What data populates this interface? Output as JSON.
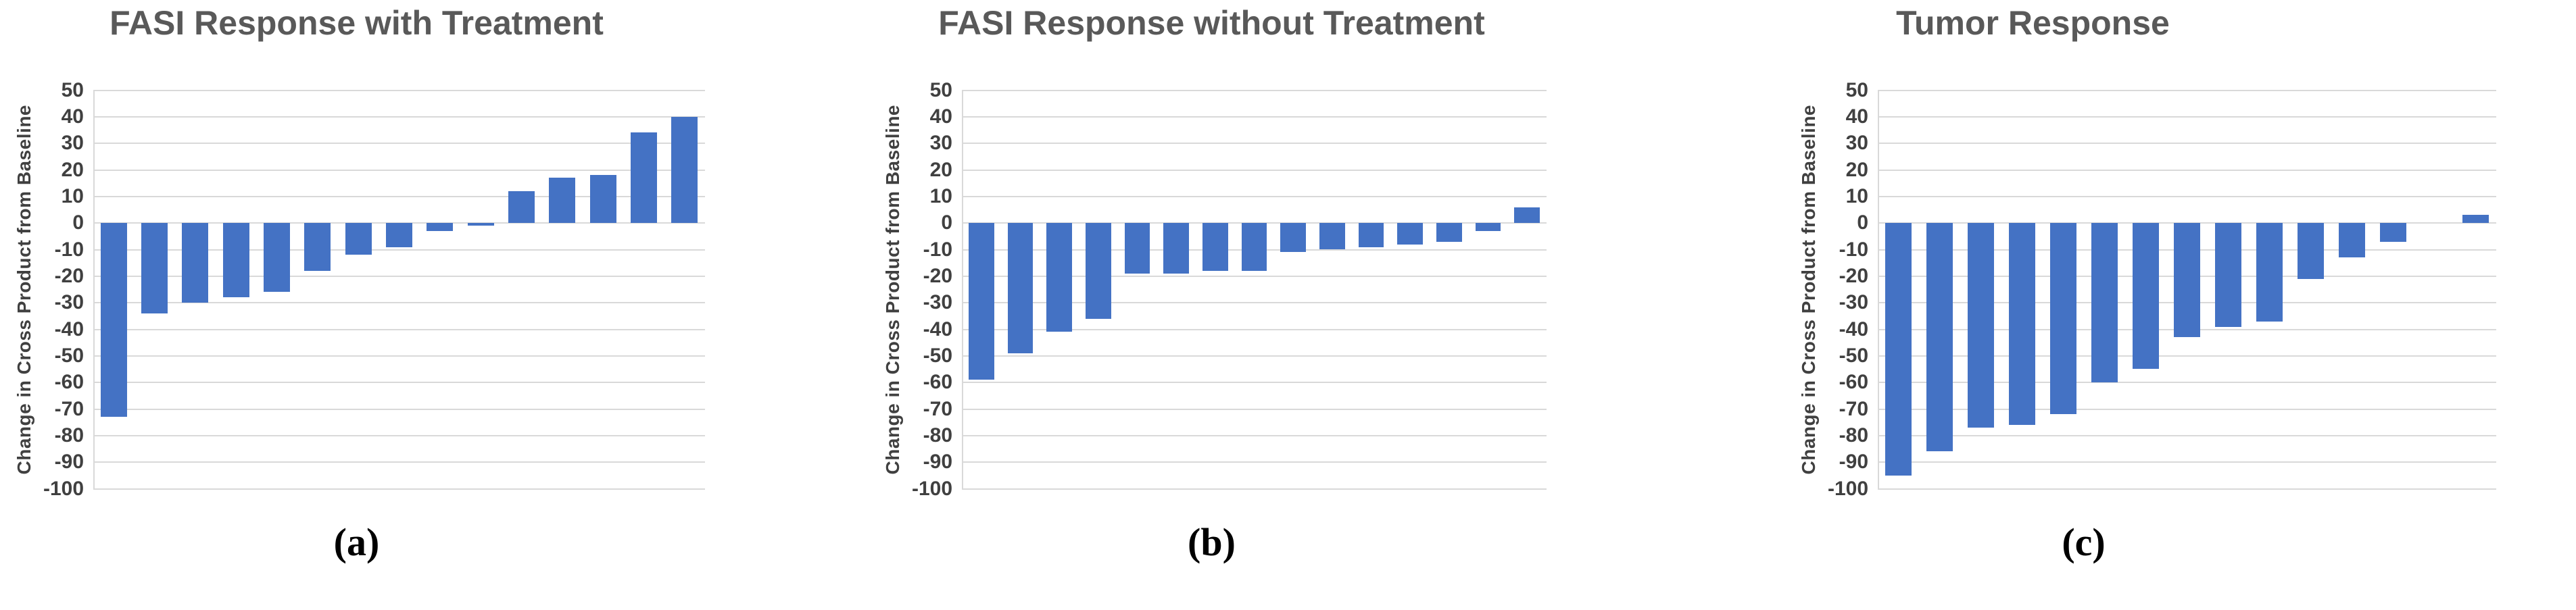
{
  "chart_data": [
    {
      "type": "bar",
      "subtype": "waterfall",
      "panel_label": "(a)",
      "title": "FASI Response with Treatment",
      "ylabel": "Change in Cross Product from Baseline",
      "xlabel": "",
      "x_tick_labels": [],
      "values": [
        -73,
        -34,
        -30,
        -28,
        -26,
        -18,
        -12,
        -9,
        -3,
        -1,
        12,
        17,
        18,
        34,
        40
      ],
      "ylim": [
        -100,
        50
      ],
      "ytick_interval": 10,
      "grid": true,
      "legend": "none",
      "colors": {
        "bar": "#4472C4",
        "gridline": "#D9D9D9",
        "title": "#595959",
        "axis_text": "#404040",
        "caption": "#000000",
        "background": "#FFFFFF"
      }
    },
    {
      "type": "bar",
      "subtype": "waterfall",
      "panel_label": "(b)",
      "title": "FASI Response without Treatment",
      "ylabel": "Change in Cross Product from Baseline",
      "xlabel": "",
      "x_tick_labels": [],
      "values": [
        -59,
        -49,
        -41,
        -36,
        -19,
        -19,
        -18,
        -18,
        -11,
        -10,
        -9,
        -8,
        -7,
        -3,
        6
      ],
      "ylim": [
        -100,
        50
      ],
      "ytick_interval": 10,
      "grid": true,
      "legend": "none",
      "colors": {
        "bar": "#4472C4",
        "gridline": "#D9D9D9",
        "title": "#595959",
        "axis_text": "#404040",
        "caption": "#000000",
        "background": "#FFFFFF"
      }
    },
    {
      "type": "bar",
      "subtype": "waterfall",
      "panel_label": "(c)",
      "title": "Tumor Response",
      "ylabel": "Change in Cross Product from Baseline",
      "xlabel": "",
      "x_tick_labels": [],
      "values": [
        -95,
        -86,
        -77,
        -76,
        -72,
        -60,
        -55,
        -43,
        -39,
        -37,
        -21,
        -13,
        -7,
        0,
        3
      ],
      "ylim": [
        -100,
        50
      ],
      "ytick_interval": 10,
      "grid": true,
      "legend": "none",
      "colors": {
        "bar": "#4472C4",
        "gridline": "#D9D9D9",
        "title": "#595959",
        "axis_text": "#404040",
        "caption": "#000000",
        "background": "#FFFFFF"
      }
    }
  ]
}
